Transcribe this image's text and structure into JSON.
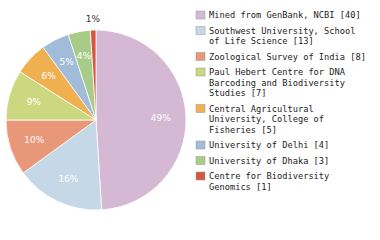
{
  "chart_data": {
    "type": "pie",
    "categories": [
      "Mined from GenBank, NCBI [40]",
      "Southwest University, School\nof Life Science [13]",
      "Zoological Survey of India [8]",
      "Paul Hebert Centre for DNA\nBarcoding and Biodiversity\nStudies [7]",
      "Central Agricultural\nUniversity, College of\nFisheries [5]",
      "University of Delhi [4]",
      "University of Dhaka [3]",
      "Centre for Biodiversity\nGenomics [1]"
    ],
    "values": [
      49,
      16,
      10,
      9,
      6,
      5,
      4,
      1
    ],
    "value_labels": [
      "49%",
      "16%",
      "10%",
      "9%",
      "6%",
      "5%",
      "4%",
      "1%"
    ],
    "colors": [
      "#d4b8d4",
      "#c5d8e8",
      "#e89878",
      "#ccd880",
      "#f0b050",
      "#a0bcd8",
      "#a8cc88",
      "#d05840"
    ],
    "data_labels": true,
    "legend": "right"
  }
}
